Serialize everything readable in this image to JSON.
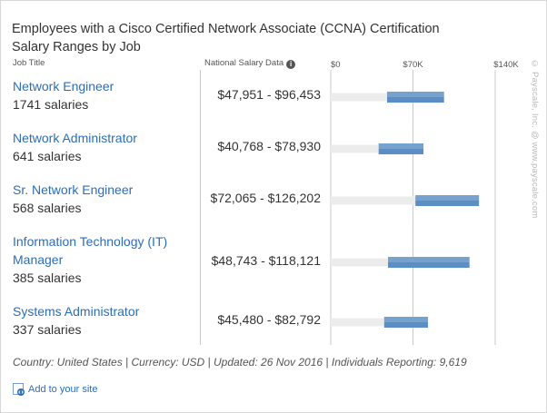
{
  "title_line1": "Employees with a Cisco Certified Network Associate (CCNA) Certification",
  "title_line2": "Salary Ranges by Job",
  "header": {
    "job_title": "Job Title",
    "national": "National Salary Data",
    "info_icon": "info-icon"
  },
  "colors": {
    "bar": "#5b8ec4",
    "track": "#ececec",
    "link": "#2a6ebb"
  },
  "chart_data": {
    "type": "bar",
    "orientation": "horizontal-range",
    "axis_ticks": [
      "$0",
      "$70K",
      "$140K"
    ],
    "xlim": [
      0,
      140000
    ],
    "grid": true,
    "categories": [
      "Network Engineer",
      "Network Administrator",
      "Sr. Network Engineer",
      "Information Technology (IT) Manager",
      "Systems Administrator"
    ],
    "series": [
      {
        "low": [
          47951,
          40768,
          72065,
          48743,
          45480
        ],
        "high": [
          96453,
          78930,
          126202,
          118121,
          82792
        ]
      }
    ]
  },
  "jobs": [
    {
      "title": "Network Engineer",
      "count": "1741 salaries",
      "range": "$47,951 - $96,453"
    },
    {
      "title": "Network Administrator",
      "count": "641 salaries",
      "range": "$40,768 - $78,930"
    },
    {
      "title": "Sr. Network Engineer",
      "count": "568 salaries",
      "range": "$72,065 - $126,202"
    },
    {
      "title_line1": "Information Technology (IT)",
      "title_line2": "Manager",
      "count": "385 salaries",
      "range": "$48,743 - $118,121"
    },
    {
      "title": "Systems Administrator",
      "count": "337 salaries",
      "range": "$45,480 - $82,792"
    }
  ],
  "footer": "Country: United States | Currency: USD | Updated: 26 Nov 2016 | Individuals Reporting: 9,619",
  "add_site": "Add to your site",
  "watermark": "© Payscale, Inc. @ www.payscale.com"
}
